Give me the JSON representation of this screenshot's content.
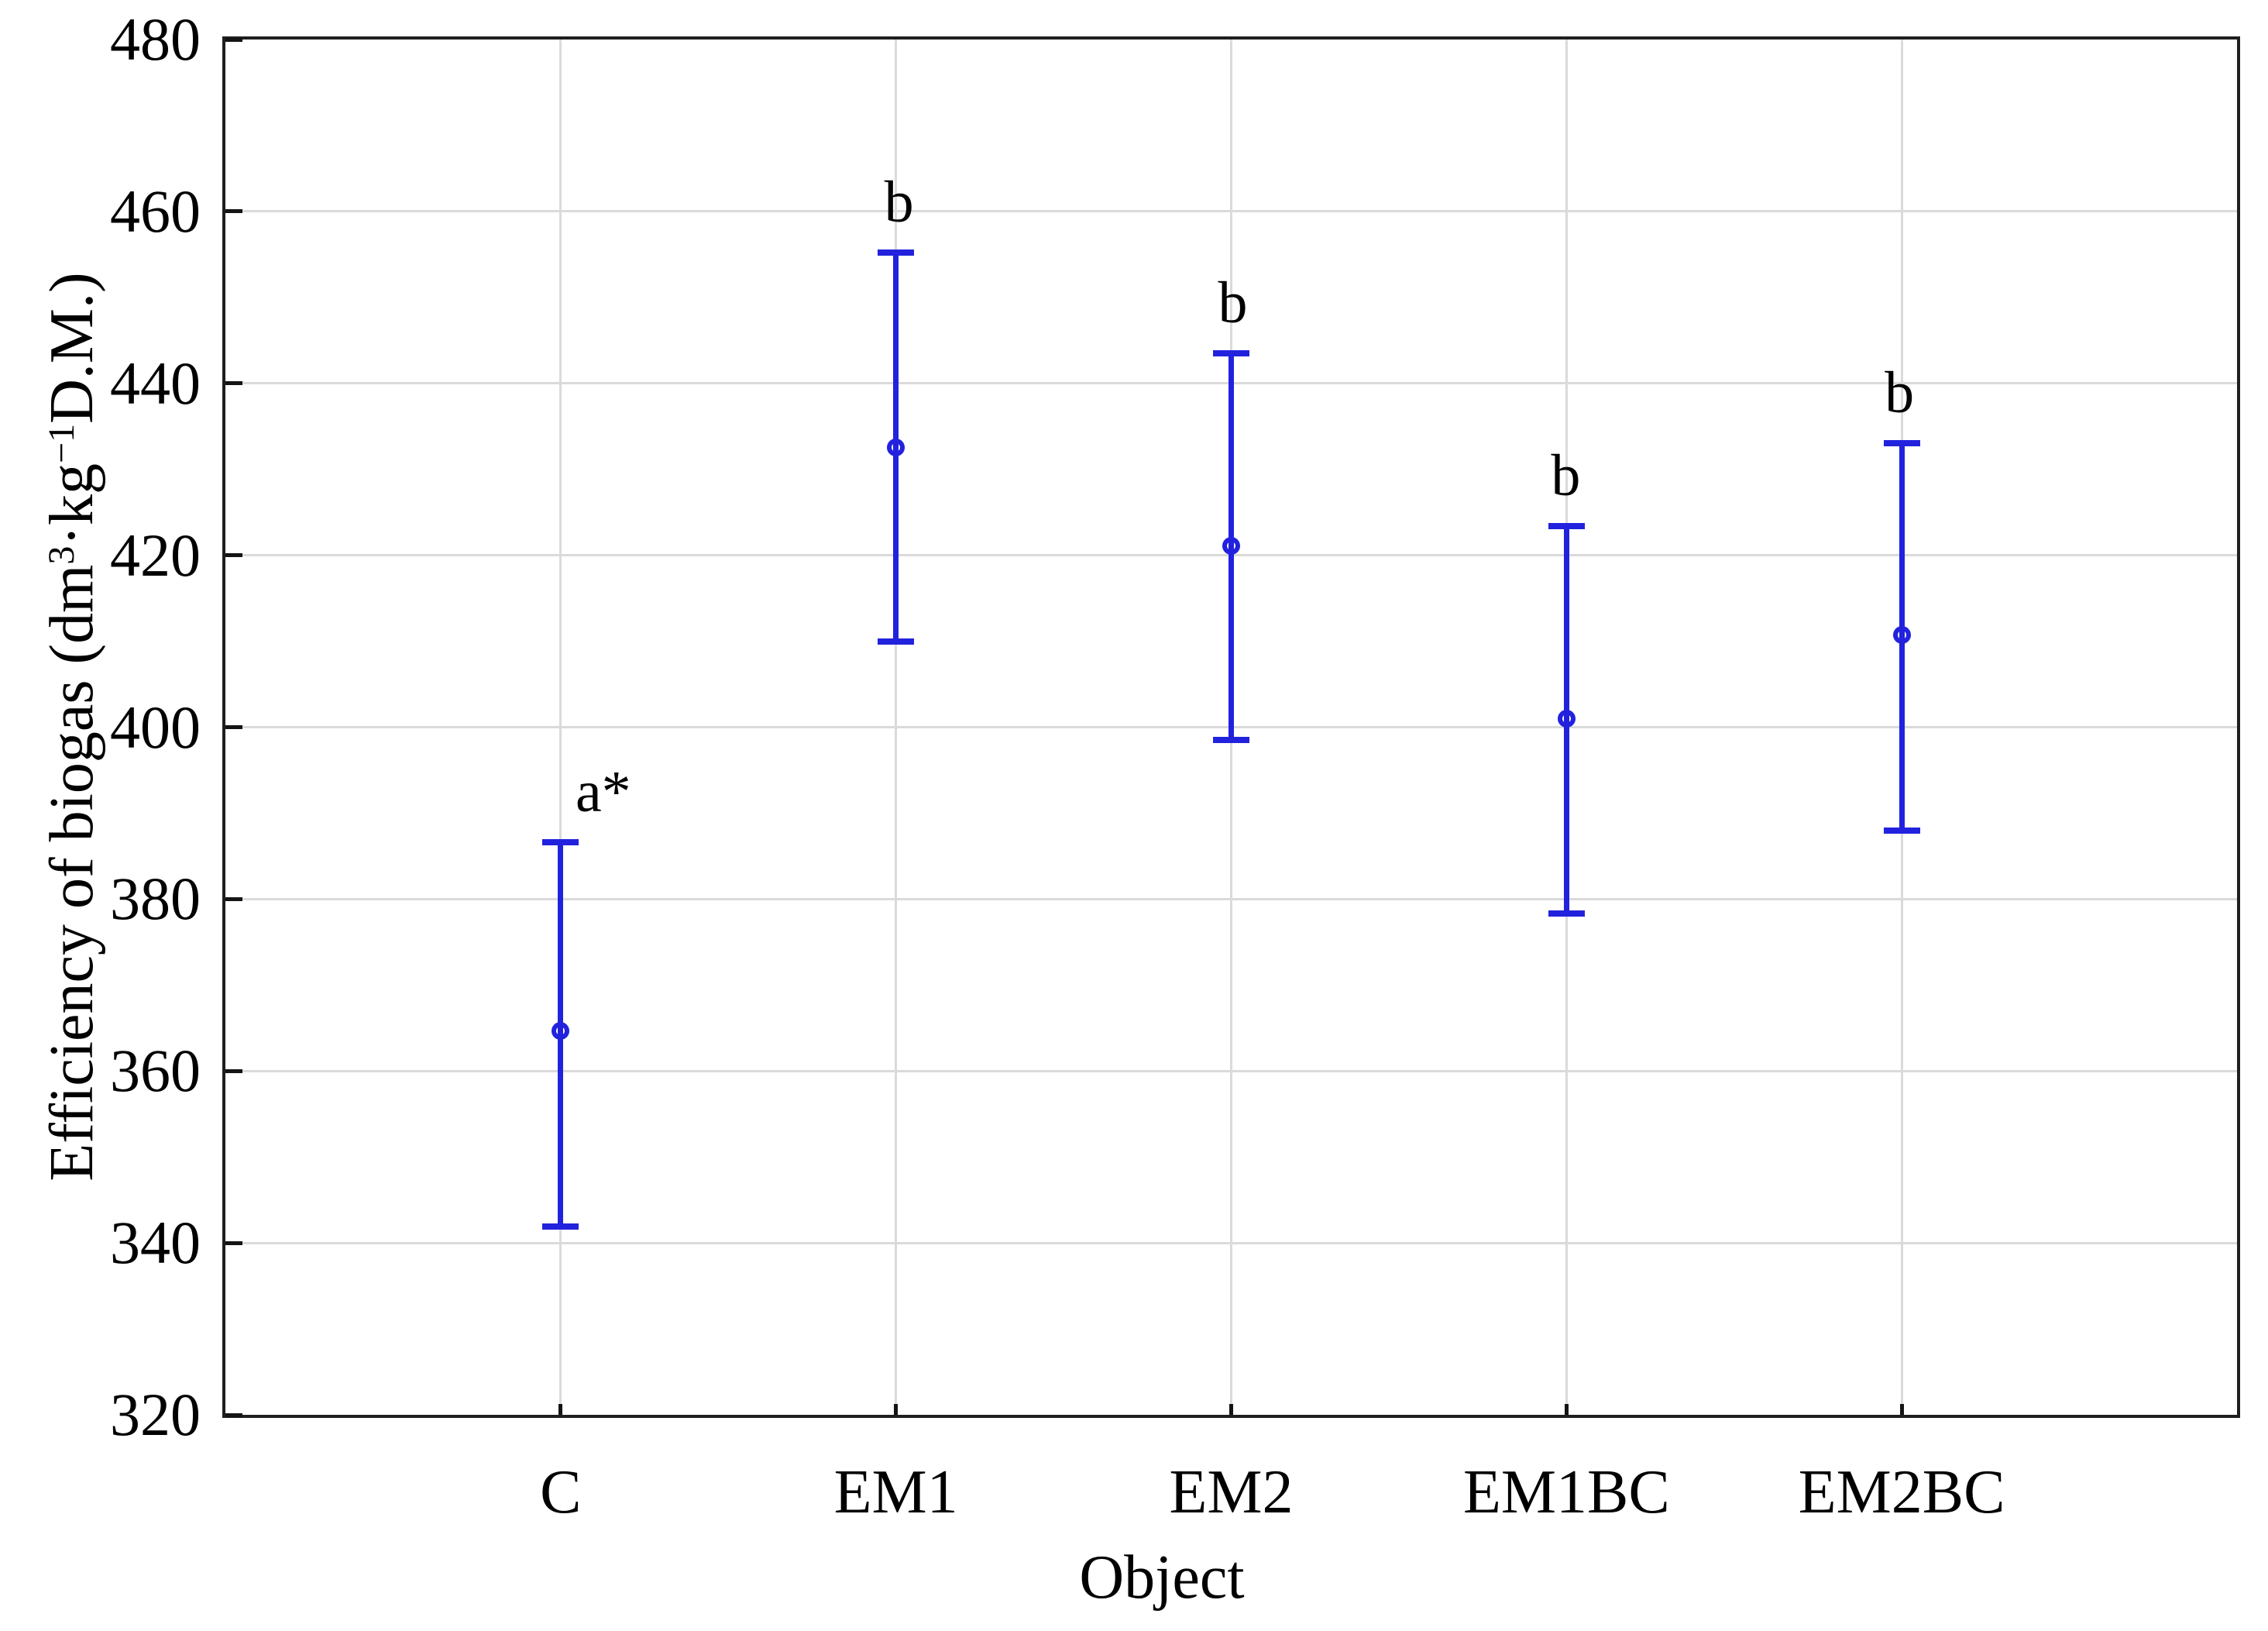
{
  "chart_data": {
    "type": "scatter",
    "subtype": "means_with_confidence_error_bars",
    "title": "",
    "xlabel": "Object",
    "ylabel": "Efficiency of biogas (dm³·kg⁻¹D.M.)",
    "ylabel_rich": [
      {
        "text": "Efficiency of biogas (dm"
      },
      {
        "sup": "3"
      },
      {
        "text": "·kg"
      },
      {
        "sup": "−1"
      },
      {
        "text": "D.M.)"
      }
    ],
    "ylim": [
      320,
      480
    ],
    "yticks": [
      320,
      340,
      360,
      380,
      400,
      420,
      440,
      460,
      480
    ],
    "grid": "light gray horizontal gridlines at each y tick and vertical gridlines at each category",
    "legend": "none",
    "marker": "open-circle",
    "categories": [
      "C",
      "EM1",
      "EM2",
      "EM1BC",
      "EM2BC"
    ],
    "points": [
      {
        "category": "C",
        "mean": 364.7,
        "ci_low": 341.9,
        "ci_high": 386.6,
        "sig_label": "a*",
        "sig_label_dx": 55
      },
      {
        "category": "EM1",
        "mean": 432.5,
        "ci_low": 410.0,
        "ci_high": 455.2,
        "sig_label": "b",
        "sig_label_dx": 4
      },
      {
        "category": "EM2",
        "mean": 421.1,
        "ci_low": 398.5,
        "ci_high": 443.5,
        "sig_label": "b",
        "sig_label_dx": 2
      },
      {
        "category": "EM1BC",
        "mean": 401.0,
        "ci_low": 378.3,
        "ci_high": 423.4,
        "sig_label": "b",
        "sig_label_dx": -1
      },
      {
        "category": "EM2BC",
        "mean": 410.7,
        "ci_low": 388.0,
        "ci_high": 433.0,
        "sig_label": "b",
        "sig_label_dx": -3
      }
    ],
    "colors": {
      "error_bar": "#2222DE",
      "grid": "#dadada",
      "frame": "#1f1f1f",
      "text": "#000000"
    }
  }
}
